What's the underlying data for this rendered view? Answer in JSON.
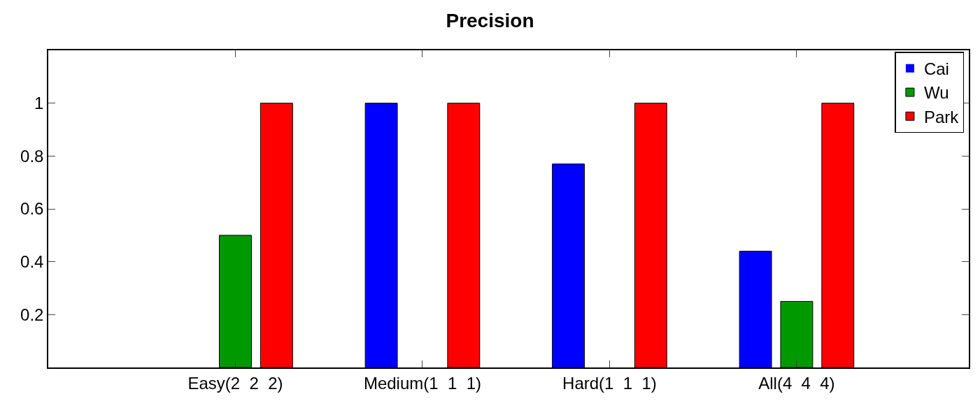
{
  "chart_data": {
    "type": "bar",
    "title": "Precision",
    "categories": [
      "Easy(2  2  2)",
      "Medium(1  1  1)",
      "Hard(1  1  1)",
      "All(4  4  4)"
    ],
    "series": [
      {
        "name": "Cai",
        "color": "#0000ff",
        "values": [
          0,
          1,
          0.77,
          0.44
        ]
      },
      {
        "name": "Wu",
        "color": "#009900",
        "values": [
          0.5,
          0,
          0,
          0.25
        ]
      },
      {
        "name": "Park",
        "color": "#ff0000",
        "values": [
          1,
          1,
          1,
          1
        ]
      }
    ],
    "ylim": [
      0,
      1.2
    ],
    "yticks": [
      0.2,
      0.4,
      0.6,
      0.8,
      1
    ],
    "legend": "top right"
  }
}
